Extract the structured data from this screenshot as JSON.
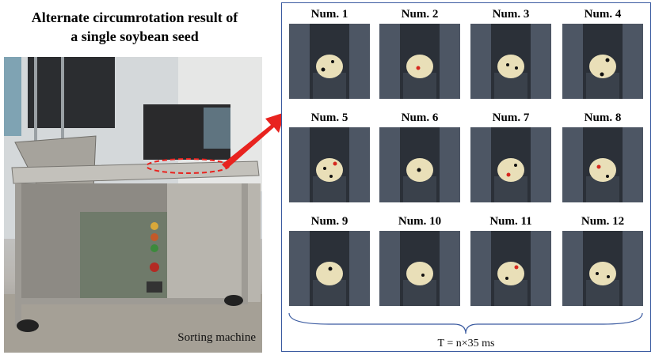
{
  "title": {
    "line1": "Alternate circumrotation result of",
    "line2": "a single soybean seed"
  },
  "photo": {
    "caption": "Sorting machine"
  },
  "panel": {
    "labels": [
      "Num. 1",
      "Num. 2",
      "Num. 3",
      "Num. 4",
      "Num. 5",
      "Num. 6",
      "Num. 7",
      "Num. 8",
      "Num. 9",
      "Num. 10",
      "Num. 11",
      "Num. 12"
    ],
    "formula": "T = n×35 ms"
  },
  "colors": {
    "accent_arrow": "#e8231f",
    "panel_border": "#3a5aa0",
    "seed": "#e9dfb8",
    "belt": "#4d5664"
  }
}
